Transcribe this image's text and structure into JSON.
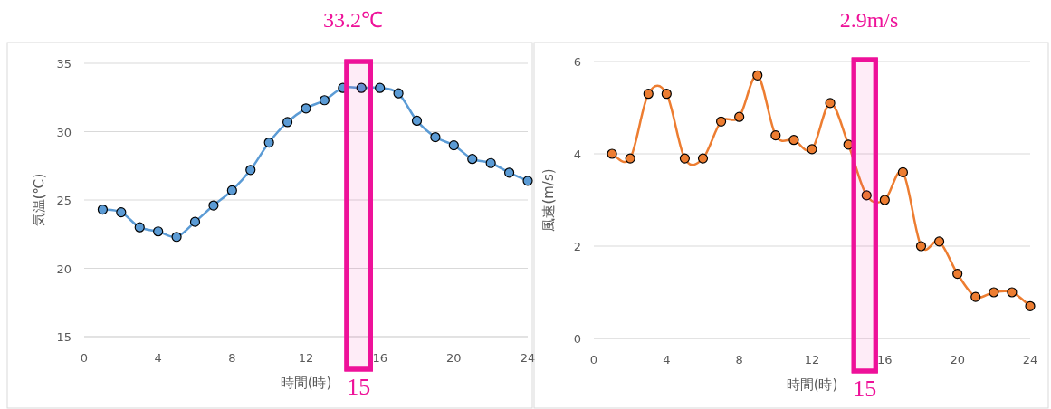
{
  "chart_data": [
    {
      "type": "line",
      "title": "33.2℃",
      "xlabel": "時間(時)",
      "ylabel": "気温(℃)",
      "x": [
        1,
        2,
        3,
        4,
        5,
        6,
        7,
        8,
        9,
        10,
        11,
        12,
        13,
        14,
        15,
        16,
        17,
        18,
        19,
        20,
        21,
        22,
        23,
        24
      ],
      "series": [
        {
          "color": "#5b9bd5",
          "values": [
            24.3,
            24.1,
            23.0,
            22.7,
            22.3,
            23.4,
            24.6,
            25.7,
            27.2,
            29.2,
            30.7,
            31.7,
            32.3,
            33.2,
            33.2,
            33.2,
            32.8,
            30.8,
            29.6,
            29.0,
            28.0,
            27.7,
            27.0,
            26.4
          ]
        }
      ],
      "xlim": [
        0,
        24
      ],
      "xticks": [
        0,
        4,
        8,
        12,
        16,
        20,
        24
      ],
      "ylim": [
        15,
        35
      ],
      "yticks": [
        15,
        20,
        25,
        30,
        35
      ],
      "grid": "y",
      "marker": "circle",
      "bands": [
        {
          "axis": "x",
          "from": 14.2,
          "to": 15.5,
          "color": "#ee1199"
        }
      ],
      "annotations": [
        "15"
      ]
    },
    {
      "type": "line",
      "title": "2.9m/s",
      "xlabel": "時間(時)",
      "ylabel": "風速(m/s)",
      "x": [
        1,
        2,
        3,
        4,
        5,
        6,
        7,
        8,
        9,
        10,
        11,
        12,
        13,
        14,
        15,
        16,
        17,
        18,
        19,
        20,
        21,
        22,
        23,
        24
      ],
      "series": [
        {
          "color": "#ed7d31",
          "values": [
            4.0,
            3.9,
            5.3,
            5.3,
            3.9,
            3.9,
            4.7,
            4.8,
            5.7,
            4.4,
            4.3,
            4.1,
            5.1,
            4.2,
            3.1,
            3.0,
            3.6,
            2.0,
            2.1,
            1.4,
            0.9,
            1.0,
            1.0,
            0.7
          ]
        }
      ],
      "xlim": [
        0,
        24
      ],
      "xticks": [
        0,
        4,
        8,
        12,
        16,
        20,
        24
      ],
      "ylim": [
        0,
        6
      ],
      "yticks": [
        0,
        2,
        4,
        6
      ],
      "grid": "y",
      "marker": "circle",
      "bands": [
        {
          "axis": "x",
          "from": 14.3,
          "to": 15.5,
          "color": "#ee1199"
        }
      ],
      "annotations": [
        "15"
      ]
    }
  ]
}
